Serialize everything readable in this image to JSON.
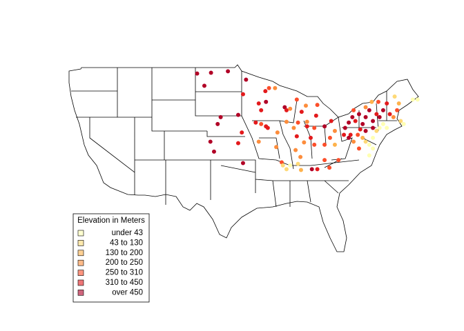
{
  "legend": {
    "title": "Elevation in Meters",
    "items": [
      {
        "label": "under 43",
        "color": "#FFFFB2"
      },
      {
        "label": "43 to 130",
        "color": "#FED976"
      },
      {
        "label": "130 to 200",
        "color": "#FEB24C"
      },
      {
        "label": "200 to 250",
        "color": "#FD8D3C"
      },
      {
        "label": "250 to 310",
        "color": "#FC4E2A"
      },
      {
        "label": "310 to 450",
        "color": "#E31A1C"
      },
      {
        "label": "over 450",
        "color": "#B10026"
      }
    ]
  },
  "points": [
    {
      "lon": -103.5,
      "lat": 48.4,
      "color": "#B10026"
    },
    {
      "lon": -101.2,
      "lat": 48.5,
      "color": "#B10026"
    },
    {
      "lon": -98.4,
      "lat": 48.7,
      "color": "#B10026"
    },
    {
      "lon": -102.3,
      "lat": 46.8,
      "color": "#B10026"
    },
    {
      "lon": -95.9,
      "lat": 45.7,
      "color": "#E31A1C"
    },
    {
      "lon": -95.4,
      "lat": 47.6,
      "color": "#B10026"
    },
    {
      "lon": -92.2,
      "lat": 46.1,
      "color": "#E31A1C"
    },
    {
      "lon": -91.6,
      "lat": 46.5,
      "color": "#FC4E2A"
    },
    {
      "lon": -93.3,
      "lat": 44.5,
      "color": "#E31A1C"
    },
    {
      "lon": -92.1,
      "lat": 44.7,
      "color": "#B10026"
    },
    {
      "lon": -92.9,
      "lat": 43.6,
      "color": "#E31A1C"
    },
    {
      "lon": -90.6,
      "lat": 46.5,
      "color": "#FD8D3C"
    },
    {
      "lon": -89.0,
      "lat": 44.0,
      "color": "#B10026"
    },
    {
      "lon": -88.7,
      "lat": 43.6,
      "color": "#E31A1C"
    },
    {
      "lon": -88.1,
      "lat": 43.8,
      "color": "#FD8D3C"
    },
    {
      "lon": -88.7,
      "lat": 42.1,
      "color": "#FD8D3C"
    },
    {
      "lon": -87.0,
      "lat": 45.0,
      "color": "#FC4E2A"
    },
    {
      "lon": -86.2,
      "lat": 43.4,
      "color": "#E31A1C"
    },
    {
      "lon": -85.5,
      "lat": 44.2,
      "color": "#FD8D3C"
    },
    {
      "lon": -85.3,
      "lat": 42.1,
      "color": "#FD8D3C"
    },
    {
      "lon": -83.6,
      "lat": 44.3,
      "color": "#FC4E2A"
    },
    {
      "lon": -83.8,
      "lat": 42.9,
      "color": "#E31A1C"
    },
    {
      "lon": -93.8,
      "lat": 42.0,
      "color": "#E31A1C"
    },
    {
      "lon": -92.1,
      "lat": 41.5,
      "color": "#E31A1C"
    },
    {
      "lon": -92.9,
      "lat": 41.8,
      "color": "#FC4E2A"
    },
    {
      "lon": -91.8,
      "lat": 41.3,
      "color": "#E31A1C"
    },
    {
      "lon": -90.2,
      "lat": 40.7,
      "color": "#FD8D3C"
    },
    {
      "lon": -99.6,
      "lat": 42.7,
      "color": "#B10026"
    },
    {
      "lon": -100.1,
      "lat": 41.8,
      "color": "#B10026"
    },
    {
      "lon": -96.7,
      "lat": 43.0,
      "color": "#B10026"
    },
    {
      "lon": -96.1,
      "lat": 40.7,
      "color": "#E31A1C"
    },
    {
      "lon": -101.3,
      "lat": 39.5,
      "color": "#B10026"
    },
    {
      "lon": -100.7,
      "lat": 38.2,
      "color": "#B10026"
    },
    {
      "lon": -95.9,
      "lat": 36.7,
      "color": "#B10026"
    },
    {
      "lon": -96.7,
      "lat": 39.3,
      "color": "#E31A1C"
    },
    {
      "lon": -90.4,
      "lat": 38.8,
      "color": "#FD8D3C"
    },
    {
      "lon": -89.5,
      "lat": 36.8,
      "color": "#FC4E2A"
    },
    {
      "lon": -93.3,
      "lat": 39.5,
      "color": "#FD8D3C"
    },
    {
      "lon": -87.5,
      "lat": 41.3,
      "color": "#FD8D3C"
    },
    {
      "lon": -86.8,
      "lat": 42.0,
      "color": "#FC4E2A"
    },
    {
      "lon": -87.0,
      "lat": 40.2,
      "color": "#E31A1C"
    },
    {
      "lon": -87.2,
      "lat": 38.4,
      "color": "#FD8D3C"
    },
    {
      "lon": -86.4,
      "lat": 37.5,
      "color": "#FD8D3C"
    },
    {
      "lon": -85.8,
      "lat": 39.4,
      "color": "#FD8D3C"
    },
    {
      "lon": -85.3,
      "lat": 41.5,
      "color": "#E31A1C"
    },
    {
      "lon": -84.1,
      "lat": 41.3,
      "color": "#FC4E2A"
    },
    {
      "lon": -84.7,
      "lat": 40.0,
      "color": "#E31A1C"
    },
    {
      "lon": -84.1,
      "lat": 39.1,
      "color": "#FC4E2A"
    },
    {
      "lon": -81.3,
      "lat": 42.2,
      "color": "#E31A1C"
    },
    {
      "lon": -81.5,
      "lat": 40.0,
      "color": "#FC4E2A"
    },
    {
      "lon": -80.7,
      "lat": 40.9,
      "color": "#FD8D3C"
    },
    {
      "lon": -82.4,
      "lat": 39.1,
      "color": "#FC4E2A"
    },
    {
      "lon": -82.4,
      "lat": 41.5,
      "color": "#B10026"
    },
    {
      "lon": -89.3,
      "lat": 36.4,
      "color": "#FED976"
    },
    {
      "lon": -88.7,
      "lat": 35.9,
      "color": "#FED976"
    },
    {
      "lon": -88.1,
      "lat": 36.4,
      "color": "#FFFFB2"
    },
    {
      "lon": -86.8,
      "lat": 36.6,
      "color": "#FED976"
    },
    {
      "lon": -86.3,
      "lat": 35.8,
      "color": "#FEB24C"
    },
    {
      "lon": -84.5,
      "lat": 35.9,
      "color": "#B10026"
    },
    {
      "lon": -83.6,
      "lat": 35.9,
      "color": "#E31A1C"
    },
    {
      "lon": -81.6,
      "lat": 36.1,
      "color": "#FC4E2A"
    },
    {
      "lon": -82.4,
      "lat": 37.1,
      "color": "#FC4E2A"
    },
    {
      "lon": -80.1,
      "lat": 37.1,
      "color": "#FC4E2A"
    },
    {
      "lon": -80.7,
      "lat": 39.1,
      "color": "#FEB24C"
    },
    {
      "lon": -78.4,
      "lat": 42.0,
      "color": "#B10026"
    },
    {
      "lon": -77.8,
      "lat": 42.7,
      "color": "#B10026"
    },
    {
      "lon": -77.3,
      "lat": 42.2,
      "color": "#E31A1C"
    },
    {
      "lon": -76.7,
      "lat": 43.1,
      "color": "#B10026"
    },
    {
      "lon": -76.1,
      "lat": 41.8,
      "color": "#B10026"
    },
    {
      "lon": -75.6,
      "lat": 42.7,
      "color": "#B10026"
    },
    {
      "lon": -75.0,
      "lat": 43.6,
      "color": "#B10026"
    },
    {
      "lon": -74.4,
      "lat": 42.2,
      "color": "#B10026"
    },
    {
      "lon": -73.8,
      "lat": 43.1,
      "color": "#E31A1C"
    },
    {
      "lon": -73.3,
      "lat": 42.7,
      "color": "#B10026"
    },
    {
      "lon": -72.7,
      "lat": 43.6,
      "color": "#B10026"
    },
    {
      "lon": -72.1,
      "lat": 44.5,
      "color": "#E31A1C"
    },
    {
      "lon": -71.6,
      "lat": 43.1,
      "color": "#E31A1C"
    },
    {
      "lon": -71.0,
      "lat": 42.7,
      "color": "#FD8D3C"
    },
    {
      "lon": -70.4,
      "lat": 43.6,
      "color": "#FC4E2A"
    },
    {
      "lon": -69.8,
      "lat": 42.2,
      "color": "#FED976"
    },
    {
      "lon": -69.3,
      "lat": 41.8,
      "color": "#FFFFB2"
    },
    {
      "lon": -70.1,
      "lat": 44.5,
      "color": "#FEB24C"
    },
    {
      "lon": -70.8,
      "lat": 45.4,
      "color": "#FED976"
    },
    {
      "lon": -67.8,
      "lat": 45.0,
      "color": "#FFFFB2"
    },
    {
      "lon": -67.0,
      "lat": 45.0,
      "color": "#FFFFB2"
    },
    {
      "lon": -73.5,
      "lat": 44.7,
      "color": "#FC4E2A"
    },
    {
      "lon": -74.6,
      "lat": 44.7,
      "color": "#FEB24C"
    },
    {
      "lon": -75.6,
      "lat": 44.0,
      "color": "#FD8D3C"
    },
    {
      "lon": -77.6,
      "lat": 43.6,
      "color": "#FC4E2A"
    },
    {
      "lon": -79.0,
      "lat": 41.3,
      "color": "#B10026"
    },
    {
      "lon": -78.1,
      "lat": 40.4,
      "color": "#E31A1C"
    },
    {
      "lon": -76.9,
      "lat": 40.4,
      "color": "#FC4E2A"
    },
    {
      "lon": -76.1,
      "lat": 40.0,
      "color": "#FEB24C"
    },
    {
      "lon": -75.6,
      "lat": 39.5,
      "color": "#FED976"
    },
    {
      "lon": -75.0,
      "lat": 39.1,
      "color": "#FFFFB2"
    },
    {
      "lon": -74.4,
      "lat": 40.0,
      "color": "#FFFFB2"
    },
    {
      "lon": -73.8,
      "lat": 40.9,
      "color": "#FED976"
    },
    {
      "lon": -73.3,
      "lat": 41.3,
      "color": "#FFFFB2"
    },
    {
      "lon": -72.7,
      "lat": 41.8,
      "color": "#FFFFB2"
    },
    {
      "lon": -72.1,
      "lat": 41.3,
      "color": "#FFFFB2"
    },
    {
      "lon": -74.4,
      "lat": 38.6,
      "color": "#FFFFB2"
    },
    {
      "lon": -75.0,
      "lat": 37.7,
      "color": "#FFFFB2"
    },
    {
      "lon": -76.7,
      "lat": 38.6,
      "color": "#FC4E2A"
    },
    {
      "lon": -77.6,
      "lat": 39.5,
      "color": "#FD8D3C"
    },
    {
      "lon": -78.4,
      "lat": 40.0,
      "color": "#B10026"
    },
    {
      "lon": -79.2,
      "lat": 40.4,
      "color": "#E31A1C"
    },
    {
      "lon": -74.4,
      "lat": 41.3,
      "color": "#B10026"
    },
    {
      "lon": -75.6,
      "lat": 40.9,
      "color": "#B10026"
    },
    {
      "lon": -76.5,
      "lat": 41.1,
      "color": "#E31A1C"
    }
  ]
}
